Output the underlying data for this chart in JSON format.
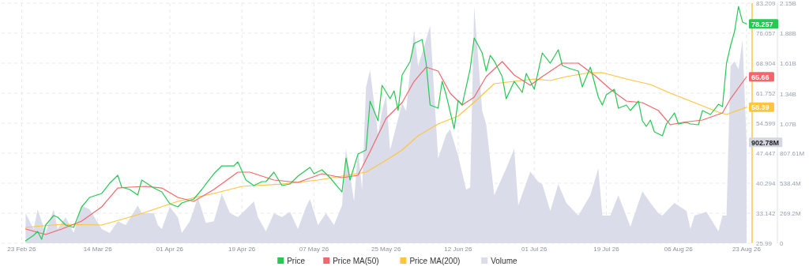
{
  "chart_data": {
    "type": "line",
    "xlim": [
      "2026-02-18",
      "2026-08-24"
    ],
    "xticks": [
      {
        "value": "2026-02-23",
        "label": "23 Feb 26"
      },
      {
        "value": "2026-03-14",
        "label": "14 Mar 26"
      },
      {
        "value": "2026-04-01",
        "label": "01 Apr 26"
      },
      {
        "value": "2026-04-19",
        "label": "19 Apr 26"
      },
      {
        "value": "2026-05-07",
        "label": "07 May 26"
      },
      {
        "value": "2026-05-25",
        "label": "25 May 26"
      },
      {
        "value": "2026-06-12",
        "label": "12 Jun 26"
      },
      {
        "value": "2026-07-01",
        "label": "01 Jul 26"
      },
      {
        "value": "2026-07-19",
        "label": "19 Jul 26"
      },
      {
        "value": "2026-08-06",
        "label": "06 Aug 26"
      },
      {
        "value": "2026-08-23",
        "label": "23 Aug 26"
      }
    ],
    "ylim": [
      25.99,
      83.209
    ],
    "yticks": [
      25.99,
      33.142,
      40.294,
      47.447,
      54.599,
      61.752,
      68.904,
      76.057,
      83.209
    ],
    "y2lim": [
      0,
      2150000000
    ],
    "y2ticks": [
      0,
      {
        "value": 269200000,
        "label": "269.2M"
      },
      {
        "value": 538400000,
        "label": "538.4M"
      },
      {
        "value": 807610000,
        "label": "807.61M"
      },
      {
        "value": 1070000000,
        "label": "1.07B"
      },
      {
        "value": 1340000000,
        "label": "1.34B"
      },
      {
        "value": 1610000000,
        "label": "1.61B"
      },
      {
        "value": 1880000000,
        "label": "1.88B"
      },
      {
        "value": 2150000000,
        "label": "2.15B"
      }
    ],
    "grid": true,
    "legend": "bottom",
    "marker": "none",
    "line_style": "solid",
    "series": [
      {
        "name": "Volume",
        "type": "area",
        "axis": "y2",
        "color": "#dadcea",
        "x": [
          "2026-02-24",
          "2026-02-26",
          "2026-02-27",
          "2026-03-01",
          "2026-03-03",
          "2026-03-04",
          "2026-03-06",
          "2026-03-08",
          "2026-03-10",
          "2026-03-12",
          "2026-03-15",
          "2026-03-17",
          "2026-03-19",
          "2026-03-21",
          "2026-03-24",
          "2026-03-25",
          "2026-03-28",
          "2026-03-29",
          "2026-03-30",
          "2026-04-01",
          "2026-04-03",
          "2026-04-04",
          "2026-04-06",
          "2026-04-08",
          "2026-04-10",
          "2026-04-12",
          "2026-04-14",
          "2026-04-16",
          "2026-04-18",
          "2026-04-20",
          "2026-04-22",
          "2026-04-23",
          "2026-04-25",
          "2026-04-27",
          "2026-04-29",
          "2026-05-01",
          "2026-05-03",
          "2026-05-05",
          "2026-05-06",
          "2026-05-08",
          "2026-05-10",
          "2026-05-12",
          "2026-05-14",
          "2026-05-15",
          "2026-05-17",
          "2026-05-18",
          "2026-05-19",
          "2026-05-20",
          "2026-05-21",
          "2026-05-23",
          "2026-05-24",
          "2026-05-25",
          "2026-05-26",
          "2026-05-28",
          "2026-05-29",
          "2026-05-30",
          "2026-06-01",
          "2026-06-02",
          "2026-06-05",
          "2026-06-07",
          "2026-06-09",
          "2026-06-10",
          "2026-06-12",
          "2026-06-14",
          "2026-06-15",
          "2026-06-16",
          "2026-06-18",
          "2026-06-19",
          "2026-06-21",
          "2026-06-24",
          "2026-06-26",
          "2026-06-27",
          "2026-06-30",
          "2026-07-02",
          "2026-07-03",
          "2026-07-05",
          "2026-07-07",
          "2026-07-09",
          "2026-07-12",
          "2026-07-15",
          "2026-07-17",
          "2026-07-18",
          "2026-07-20",
          "2026-07-22",
          "2026-07-25",
          "2026-07-28",
          "2026-07-30",
          "2026-08-01",
          "2026-08-02",
          "2026-08-05",
          "2026-08-08",
          "2026-08-09",
          "2026-08-10",
          "2026-08-13",
          "2026-08-16",
          "2026-08-17",
          "2026-08-18",
          "2026-08-19",
          "2026-08-20",
          "2026-08-21",
          "2026-08-22",
          "2026-08-23"
        ],
        "values": [
          268000000,
          127000000,
          303000000,
          92000000,
          303000000,
          127000000,
          233000000,
          92000000,
          338000000,
          303000000,
          127000000,
          92000000,
          197000000,
          162000000,
          338000000,
          268000000,
          268000000,
          162000000,
          127000000,
          324000000,
          233000000,
          92000000,
          197000000,
          409000000,
          183000000,
          197000000,
          444000000,
          268000000,
          233000000,
          303000000,
          374000000,
          233000000,
          106000000,
          268000000,
          233000000,
          282000000,
          127000000,
          324000000,
          395000000,
          162000000,
          268000000,
          162000000,
          338000000,
          846000000,
          374000000,
          832000000,
          479000000,
          1396000000,
          1551000000,
          973000000,
          1184000000,
          1325000000,
          832000000,
          1114000000,
          1255000000,
          1184000000,
          1910000000,
          1586000000,
          1946000000,
          761000000,
          973000000,
          1022000000,
          782000000,
          479000000,
          500000000,
          2122000000,
          1184000000,
          1064000000,
          430000000,
          670000000,
          846000000,
          338000000,
          641000000,
          550000000,
          529000000,
          289000000,
          529000000,
          360000000,
          247000000,
          430000000,
          670000000,
          247000000,
          247000000,
          430000000,
          148000000,
          465000000,
          360000000,
          268000000,
          247000000,
          360000000,
          289000000,
          127000000,
          247000000,
          282000000,
          106000000,
          247000000,
          247000000,
          1586000000,
          1628000000,
          1558000000,
          1819000000,
          902780000
        ],
        "value_labels": [
          null,
          null,
          null,
          null,
          null,
          null,
          null,
          null,
          null,
          null,
          null,
          null,
          null,
          null,
          null,
          null,
          null,
          null,
          null,
          null,
          null,
          null,
          null,
          null,
          null,
          null,
          null,
          null,
          null,
          null,
          null,
          null,
          null,
          null,
          null,
          null,
          null,
          null,
          null,
          null,
          null,
          null,
          null,
          null,
          null,
          null,
          null,
          null,
          null,
          null,
          null,
          null,
          null,
          null,
          null,
          null,
          null,
          null,
          null,
          null,
          null,
          null,
          null,
          null,
          null,
          null,
          null,
          null,
          null,
          null,
          null,
          null,
          null,
          null,
          null,
          null,
          null,
          null,
          null,
          null,
          null,
          null,
          null,
          null,
          null,
          null,
          null,
          null,
          null,
          null,
          null,
          null,
          null,
          null,
          null,
          null,
          null,
          null,
          null,
          null,
          null,
          "902.78M"
        ]
      },
      {
        "name": "Price MA(200)",
        "type": "line",
        "color": "#ffc53d",
        "x": [
          "2026-02-24",
          "2026-03-05",
          "2026-03-15",
          "2026-03-24",
          "2026-04-03",
          "2026-04-12",
          "2026-04-19",
          "2026-04-29",
          "2026-05-08",
          "2026-05-14",
          "2026-05-20",
          "2026-05-25",
          "2026-05-29",
          "2026-06-02",
          "2026-06-07",
          "2026-06-12",
          "2026-06-17",
          "2026-06-21",
          "2026-06-26",
          "2026-07-01",
          "2026-07-05",
          "2026-07-09",
          "2026-07-15",
          "2026-07-18",
          "2026-07-24",
          "2026-07-30",
          "2026-08-04",
          "2026-08-10",
          "2026-08-16",
          "2026-08-18",
          "2026-08-23"
        ],
        "values": [
          29.75,
          30.51,
          30.32,
          32.77,
          35.97,
          37.85,
          39.54,
          40.1,
          41.05,
          41.99,
          42.93,
          45.75,
          48.2,
          51.59,
          54.41,
          56.29,
          60.43,
          64.01,
          64.57,
          65.14,
          64.76,
          65.7,
          66.64,
          66.64,
          65.14,
          63.82,
          61.75,
          59.49,
          57.23,
          56.67,
          58.39
        ],
        "value_labels": [
          null,
          null,
          null,
          null,
          null,
          null,
          null,
          null,
          null,
          null,
          null,
          null,
          null,
          null,
          null,
          null,
          null,
          null,
          null,
          null,
          null,
          null,
          null,
          null,
          null,
          null,
          null,
          null,
          null,
          null,
          "58.39"
        ]
      },
      {
        "name": "Price MA(50)",
        "type": "line",
        "color": "#f2676b",
        "x": [
          "2026-02-24",
          "2026-03-01",
          "2026-03-05",
          "2026-03-10",
          "2026-03-15",
          "2026-03-19",
          "2026-03-22",
          "2026-03-26",
          "2026-03-30",
          "2026-04-03",
          "2026-04-07",
          "2026-04-12",
          "2026-04-18",
          "2026-04-21",
          "2026-04-27",
          "2026-05-03",
          "2026-05-09",
          "2026-05-14",
          "2026-05-18",
          "2026-05-21",
          "2026-05-25",
          "2026-05-29",
          "2026-06-01",
          "2026-06-04",
          "2026-06-07",
          "2026-06-10",
          "2026-06-13",
          "2026-06-16",
          "2026-06-19",
          "2026-06-23",
          "2026-06-26",
          "2026-06-30",
          "2026-07-03",
          "2026-07-08",
          "2026-07-12",
          "2026-07-16",
          "2026-07-20",
          "2026-07-24",
          "2026-07-28",
          "2026-08-01",
          "2026-08-04",
          "2026-08-07",
          "2026-08-12",
          "2026-08-17",
          "2026-08-19",
          "2026-08-23"
        ],
        "values": [
          29.38,
          28.06,
          29.38,
          31.26,
          34.65,
          39.16,
          39.35,
          39.54,
          39.16,
          36.91,
          35.97,
          38.79,
          42.93,
          42.93,
          41.05,
          40.48,
          42.55,
          41.61,
          42.18,
          47.82,
          55.73,
          59.49,
          64.57,
          67.96,
          67.02,
          61.75,
          58.93,
          60.81,
          65.7,
          69.28,
          66.08,
          63.63,
          65.7,
          68.9,
          68.9,
          66.08,
          62.69,
          59.87,
          59.49,
          57.61,
          54.22,
          54.79,
          55.35,
          57.04,
          60.43,
          65.66
        ],
        "value_labels": [
          null,
          null,
          null,
          null,
          null,
          null,
          null,
          null,
          null,
          null,
          null,
          null,
          null,
          null,
          null,
          null,
          null,
          null,
          null,
          null,
          null,
          null,
          null,
          null,
          null,
          null,
          null,
          null,
          null,
          null,
          null,
          null,
          null,
          null,
          null,
          null,
          null,
          null,
          null,
          null,
          null,
          null,
          null,
          null,
          null,
          "65.66"
        ]
      },
      {
        "name": "Price",
        "type": "line",
        "color": "#26c953",
        "x": [
          "2026-02-24",
          "2026-02-26",
          "2026-02-27",
          "2026-02-28",
          "2026-03-01",
          "2026-03-03",
          "2026-03-04",
          "2026-03-06",
          "2026-03-08",
          "2026-03-10",
          "2026-03-12",
          "2026-03-15",
          "2026-03-17",
          "2026-03-19",
          "2026-03-20",
          "2026-03-22",
          "2026-03-24",
          "2026-03-25",
          "2026-03-28",
          "2026-03-30",
          "2026-04-01",
          "2026-04-03",
          "2026-04-04",
          "2026-04-07",
          "2026-04-09",
          "2026-04-10",
          "2026-04-12",
          "2026-04-14",
          "2026-04-17",
          "2026-04-18",
          "2026-04-20",
          "2026-04-22",
          "2026-04-24",
          "2026-04-25",
          "2026-04-27",
          "2026-04-29",
          "2026-05-01",
          "2026-05-03",
          "2026-05-06",
          "2026-05-07",
          "2026-05-09",
          "2026-05-11",
          "2026-05-13",
          "2026-05-14",
          "2026-05-15",
          "2026-05-16",
          "2026-05-18",
          "2026-05-20",
          "2026-05-21",
          "2026-05-23",
          "2026-05-24",
          "2026-05-26",
          "2026-05-27",
          "2026-05-28",
          "2026-05-29",
          "2026-05-31",
          "2026-06-01",
          "2026-06-03",
          "2026-06-04",
          "2026-06-05",
          "2026-06-07",
          "2026-06-08",
          "2026-06-09",
          "2026-06-11",
          "2026-06-12",
          "2026-06-13",
          "2026-06-15",
          "2026-06-16",
          "2026-06-18",
          "2026-06-19",
          "2026-06-20",
          "2026-06-21",
          "2026-06-23",
          "2026-06-24",
          "2026-06-26",
          "2026-06-28",
          "2026-06-29",
          "2026-07-01",
          "2026-07-03",
          "2026-07-05",
          "2026-07-07",
          "2026-07-08",
          "2026-07-10",
          "2026-07-12",
          "2026-07-13",
          "2026-07-15",
          "2026-07-17",
          "2026-07-18",
          "2026-07-19",
          "2026-07-21",
          "2026-07-22",
          "2026-07-24",
          "2026-07-25",
          "2026-07-27",
          "2026-07-28",
          "2026-07-29",
          "2026-07-30",
          "2026-07-31",
          "2026-08-02",
          "2026-08-03",
          "2026-08-05",
          "2026-08-06",
          "2026-08-08",
          "2026-08-09",
          "2026-08-11",
          "2026-08-12",
          "2026-08-14",
          "2026-08-16",
          "2026-08-17",
          "2026-08-18",
          "2026-08-19",
          "2026-08-20",
          "2026-08-21",
          "2026-08-22",
          "2026-08-23"
        ],
        "values": [
          26.55,
          27.87,
          28.81,
          26.93,
          30.32,
          32.58,
          32.2,
          30.32,
          29.75,
          34.65,
          36.91,
          37.85,
          40.29,
          42.18,
          39.35,
          38.79,
          37.47,
          41.05,
          39.16,
          38.22,
          35.4,
          34.65,
          35.59,
          36.53,
          38.79,
          40.1,
          42.55,
          44.43,
          44.43,
          45.37,
          41.05,
          39.73,
          40.67,
          40.67,
          42.93,
          39.73,
          40.1,
          41.99,
          44.06,
          42.55,
          43.49,
          41.61,
          39.35,
          38.22,
          46.32,
          41.05,
          47.26,
          48.2,
          59.87,
          55.16,
          63.63,
          60.43,
          62.31,
          57.61,
          66.08,
          69.28,
          73.61,
          74.55,
          68.9,
          58.93,
          58.17,
          64.57,
          61.37,
          53.28,
          60.05,
          58.93,
          67.58,
          74.92,
          71.35,
          67.02,
          70.78,
          69.46,
          65.7,
          60.43,
          64.57,
          61.94,
          66.45,
          62.69,
          71.35,
          68.9,
          72.1,
          68.34,
          67.58,
          67.02,
          63.25,
          67.96,
          60.81,
          58.93,
          61.37,
          62.69,
          58.17,
          58.93,
          57.61,
          59.87,
          55.16,
          53.84,
          55.35,
          52.53,
          51.59,
          54.41,
          57.04,
          54.41,
          54.79,
          54.41,
          54.22,
          57.61,
          56.67,
          59.11,
          58.55,
          68.9,
          73.04,
          76.43,
          82.45,
          78.7,
          78.257
        ],
        "value_labels": [
          null,
          null,
          null,
          null,
          null,
          null,
          null,
          null,
          null,
          null,
          null,
          null,
          null,
          null,
          null,
          null,
          null,
          null,
          null,
          null,
          null,
          null,
          null,
          null,
          null,
          null,
          null,
          null,
          null,
          null,
          null,
          null,
          null,
          null,
          null,
          null,
          null,
          null,
          null,
          null,
          null,
          null,
          null,
          null,
          null,
          null,
          null,
          null,
          null,
          null,
          null,
          null,
          null,
          null,
          null,
          null,
          null,
          null,
          null,
          null,
          null,
          null,
          null,
          null,
          null,
          null,
          null,
          null,
          null,
          null,
          null,
          null,
          null,
          null,
          null,
          null,
          null,
          null,
          null,
          null,
          null,
          null,
          null,
          null,
          null,
          null,
          null,
          null,
          null,
          null,
          null,
          null,
          null,
          null,
          null,
          null,
          null,
          null,
          null,
          null,
          null,
          null,
          null,
          null,
          null,
          null,
          null,
          null,
          null,
          null,
          null,
          null,
          null,
          null,
          "78.257"
        ]
      }
    ]
  }
}
